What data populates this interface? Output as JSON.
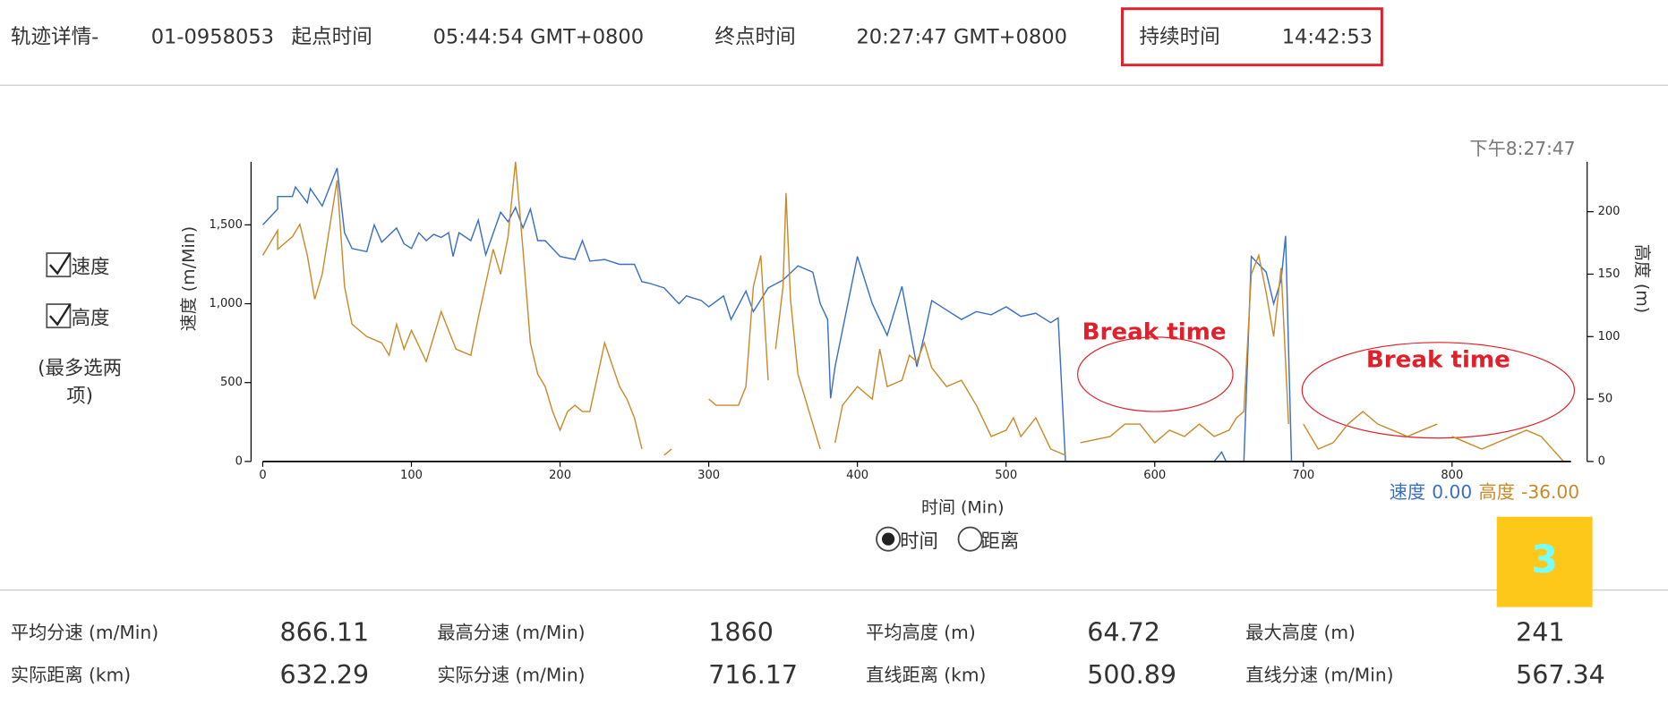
{
  "header": {
    "title": "轨迹详情-",
    "track_id": "01-0958053",
    "start_label": "起点时间",
    "start_time": "05:44:54 GMT+0800",
    "end_label": "终点时间",
    "end_time": "20:27:47 GMT+0800",
    "duration_label": "持续时间",
    "duration": "14:42:53"
  },
  "controls": {
    "checkbox_speed": "速度",
    "checkbox_height": "高度",
    "hint": "(最多选两项)",
    "radio_time": "时间",
    "radio_distance": "距离"
  },
  "chart_data": {
    "type": "line",
    "timestamp": "下午8:27:47",
    "x_label": "时间 (Min)",
    "y_label": "速度 (m/Min)",
    "y2_label": "高度 (m)",
    "xlim": [
      0,
      880
    ],
    "xticks": [
      0,
      100,
      200,
      300,
      400,
      500,
      600,
      700,
      800
    ],
    "ylim": [
      0,
      1900
    ],
    "yticks": [
      0,
      500,
      {
        "value": 1000,
        "label": "1,000"
      },
      {
        "value": 1500,
        "label": "1,500"
      }
    ],
    "y2lim": [
      0,
      240
    ],
    "y2ticks": [
      0,
      50,
      100,
      150,
      200
    ],
    "series": [
      {
        "name": "速度",
        "color": "#3a6fc4",
        "x": [
          0,
          10,
          10,
          20,
          22,
          30,
          32,
          40,
          50,
          55,
          60,
          70,
          75,
          80,
          90,
          95,
          100,
          105,
          110,
          115,
          120,
          125,
          128,
          132,
          140,
          145,
          150,
          157,
          160,
          165,
          170,
          175,
          180,
          185,
          190,
          200,
          210,
          215,
          220,
          230,
          240,
          250,
          255,
          260,
          270,
          280,
          285,
          295,
          300,
          310,
          315,
          325,
          330,
          340,
          350,
          360,
          370,
          375,
          380,
          382,
          385,
          400,
          410,
          420,
          430,
          440,
          445,
          450,
          460,
          470,
          480,
          490,
          500,
          510,
          520,
          530,
          535,
          540,
          545,
          640,
          645,
          648,
          655,
          660,
          665,
          670,
          675,
          680,
          685,
          688,
          692,
          880
        ],
        "values": [
          1500,
          1600,
          1680,
          1680,
          1740,
          1640,
          1730,
          1620,
          1860,
          1450,
          1350,
          1330,
          1500,
          1390,
          1480,
          1380,
          1350,
          1450,
          1400,
          1440,
          1420,
          1450,
          1300,
          1450,
          1400,
          1530,
          1310,
          1500,
          1580,
          1520,
          1610,
          1480,
          1600,
          1400,
          1400,
          1300,
          1280,
          1400,
          1270,
          1280,
          1250,
          1250,
          1140,
          1130,
          1100,
          1000,
          1050,
          1020,
          980,
          1050,
          900,
          1080,
          950,
          1100,
          1150,
          1240,
          1200,
          1000,
          900,
          400,
          600,
          1300,
          1000,
          800,
          1110,
          600,
          800,
          1020,
          960,
          900,
          950,
          930,
          980,
          920,
          940,
          880,
          910,
          0,
          0,
          0,
          60,
          0,
          0,
          0,
          1300,
          1250,
          1200,
          1000,
          1150,
          1430,
          0,
          0
        ]
      },
      {
        "name": "高度",
        "color": "#c98a2b",
        "axis": "y2",
        "x": [
          0,
          10,
          10,
          20,
          25,
          30,
          35,
          40,
          50,
          55,
          60,
          70,
          80,
          85,
          90,
          95,
          100,
          110,
          120,
          130,
          140,
          145,
          155,
          160,
          165,
          170,
          175,
          180,
          185,
          190,
          195,
          200,
          205,
          210,
          215,
          220,
          230,
          240,
          245,
          250,
          255,
          null,
          270,
          275,
          null,
          300,
          305,
          310,
          320,
          325,
          330,
          335,
          340,
          null,
          345,
          350,
          352,
          355,
          360,
          370,
          375,
          null,
          385,
          390,
          400,
          410,
          415,
          420,
          430,
          435,
          440,
          445,
          450,
          460,
          470,
          480,
          490,
          500,
          505,
          510,
          520,
          530,
          540,
          null,
          550,
          570,
          580,
          590,
          600,
          610,
          620,
          630,
          640,
          650,
          655,
          660,
          665,
          670,
          675,
          680,
          685,
          690,
          null,
          700,
          710,
          720,
          730,
          740,
          750,
          760,
          770,
          780,
          790,
          null,
          800,
          810,
          820,
          840,
          850,
          860,
          875
        ],
        "values": [
          165,
          185,
          170,
          180,
          190,
          165,
          130,
          150,
          225,
          140,
          110,
          100,
          95,
          85,
          110,
          90,
          105,
          80,
          120,
          90,
          85,
          115,
          170,
          150,
          180,
          240,
          170,
          95,
          70,
          60,
          40,
          25,
          40,
          45,
          40,
          40,
          95,
          60,
          50,
          35,
          10,
          null,
          5,
          10,
          null,
          50,
          45,
          45,
          45,
          60,
          140,
          165,
          65,
          null,
          90,
          140,
          215,
          130,
          70,
          30,
          10,
          null,
          15,
          45,
          60,
          50,
          90,
          60,
          65,
          85,
          80,
          95,
          75,
          60,
          65,
          45,
          20,
          25,
          35,
          20,
          35,
          10,
          5,
          null,
          15,
          20,
          30,
          30,
          15,
          25,
          20,
          30,
          20,
          25,
          35,
          40,
          150,
          165,
          135,
          100,
          155,
          30,
          null,
          30,
          10,
          15,
          30,
          40,
          30,
          25,
          20,
          25,
          30,
          null,
          20,
          15,
          10,
          20,
          25,
          20,
          0
        ]
      }
    ],
    "annotations": [
      "Break time",
      "Break time"
    ],
    "status": {
      "speed_label": "速度",
      "speed_value": "0.00",
      "height_label": "高度",
      "height_value": "-36.00"
    },
    "badge": "3"
  },
  "stats": [
    [
      "平均分速 (m/Min)",
      "866.11",
      "最高分速 (m/Min)",
      "1860",
      "平均高度 (m)",
      "64.72",
      "最大高度 (m)",
      "241"
    ],
    [
      "实际距离 (km)",
      "632.29",
      "实际分速 (m/Min)",
      "716.17",
      "直线距离 (km)",
      "500.89",
      "直线分速 (m/Min)",
      "567.34"
    ]
  ]
}
